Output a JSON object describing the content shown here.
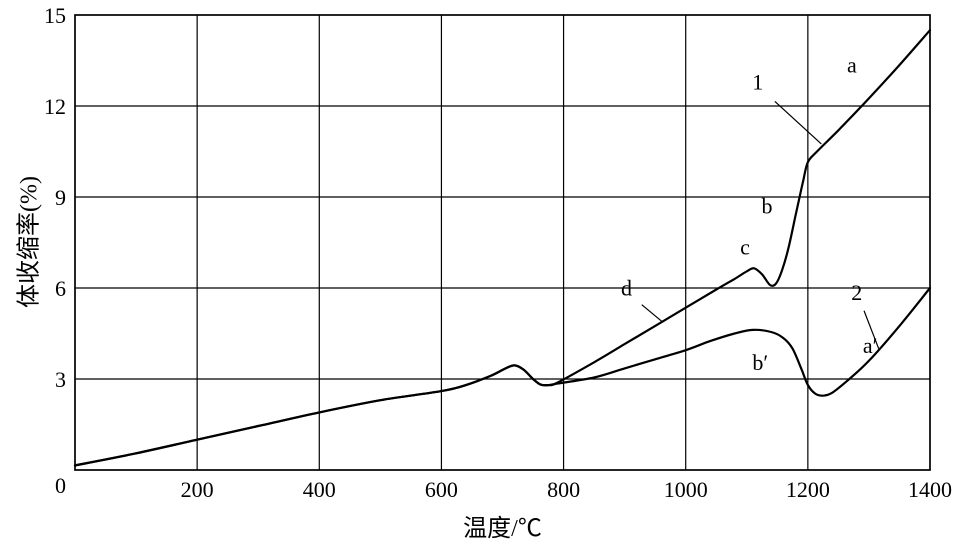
{
  "figure": {
    "background": "#ffffff"
  },
  "chart_data": {
    "type": "line",
    "title": "",
    "xlabel": "温度/℃",
    "ylabel": "体收缩率(%)",
    "xlim": [
      0,
      1400
    ],
    "ylim": [
      0,
      15
    ],
    "xticks": [
      0,
      200,
      400,
      600,
      800,
      1000,
      1200,
      1400
    ],
    "yticks": [
      0,
      3,
      6,
      9,
      12,
      15
    ],
    "grid": true,
    "legend_position": "none",
    "line_color": "#000000",
    "background_color": "#ffffff",
    "series": [
      {
        "name": "curve-1",
        "points": [
          [
            0,
            0.15
          ],
          [
            100,
            0.55
          ],
          [
            200,
            1.0
          ],
          [
            300,
            1.45
          ],
          [
            400,
            1.9
          ],
          [
            500,
            2.3
          ],
          [
            600,
            2.6
          ],
          [
            640,
            2.8
          ],
          [
            680,
            3.1
          ],
          [
            705,
            3.35
          ],
          [
            720,
            3.45
          ],
          [
            735,
            3.3
          ],
          [
            750,
            3.0
          ],
          [
            762,
            2.82
          ],
          [
            775,
            2.8
          ],
          [
            790,
            2.88
          ],
          [
            850,
            3.55
          ],
          [
            900,
            4.15
          ],
          [
            950,
            4.75
          ],
          [
            1000,
            5.35
          ],
          [
            1050,
            5.95
          ],
          [
            1080,
            6.3
          ],
          [
            1100,
            6.55
          ],
          [
            1112,
            6.65
          ],
          [
            1125,
            6.45
          ],
          [
            1138,
            6.1
          ],
          [
            1148,
            6.15
          ],
          [
            1158,
            6.6
          ],
          [
            1168,
            7.3
          ],
          [
            1180,
            8.4
          ],
          [
            1192,
            9.5
          ],
          [
            1200,
            10.15
          ],
          [
            1215,
            10.5
          ],
          [
            1250,
            11.2
          ],
          [
            1300,
            12.25
          ],
          [
            1350,
            13.35
          ],
          [
            1400,
            14.5
          ]
        ]
      },
      {
        "name": "curve-2",
        "points": [
          [
            0,
            0.15
          ],
          [
            100,
            0.55
          ],
          [
            200,
            1.0
          ],
          [
            300,
            1.45
          ],
          [
            400,
            1.9
          ],
          [
            500,
            2.3
          ],
          [
            600,
            2.6
          ],
          [
            640,
            2.8
          ],
          [
            680,
            3.1
          ],
          [
            705,
            3.35
          ],
          [
            720,
            3.45
          ],
          [
            735,
            3.3
          ],
          [
            750,
            3.0
          ],
          [
            762,
            2.82
          ],
          [
            775,
            2.8
          ],
          [
            790,
            2.85
          ],
          [
            850,
            3.05
          ],
          [
            900,
            3.35
          ],
          [
            950,
            3.65
          ],
          [
            1000,
            3.95
          ],
          [
            1040,
            4.25
          ],
          [
            1080,
            4.5
          ],
          [
            1110,
            4.62
          ],
          [
            1140,
            4.55
          ],
          [
            1160,
            4.35
          ],
          [
            1175,
            4.0
          ],
          [
            1190,
            3.3
          ],
          [
            1200,
            2.8
          ],
          [
            1212,
            2.52
          ],
          [
            1225,
            2.45
          ],
          [
            1240,
            2.55
          ],
          [
            1265,
            2.95
          ],
          [
            1300,
            3.6
          ],
          [
            1350,
            4.75
          ],
          [
            1400,
            6.0
          ]
        ]
      }
    ],
    "annotations": [
      {
        "text": "1",
        "x": 1118,
        "y": 12.55,
        "leader": [
          [
            1146,
            12.15
          ],
          [
            1222,
            10.75
          ]
        ]
      },
      {
        "text": "a",
        "x": 1272,
        "y": 13.1
      },
      {
        "text": "b",
        "x": 1133,
        "y": 8.45
      },
      {
        "text": "c",
        "x": 1097,
        "y": 7.1
      },
      {
        "text": "d",
        "x": 903,
        "y": 5.75,
        "leader": [
          [
            928,
            5.45
          ],
          [
            962,
            4.88
          ]
        ]
      },
      {
        "text": "2",
        "x": 1280,
        "y": 5.6,
        "leader": [
          [
            1292,
            5.25
          ],
          [
            1316,
            4.0
          ]
        ]
      },
      {
        "text": "a′",
        "x": 1302,
        "y": 3.85
      },
      {
        "text": "b′",
        "x": 1122,
        "y": 3.3
      }
    ]
  }
}
